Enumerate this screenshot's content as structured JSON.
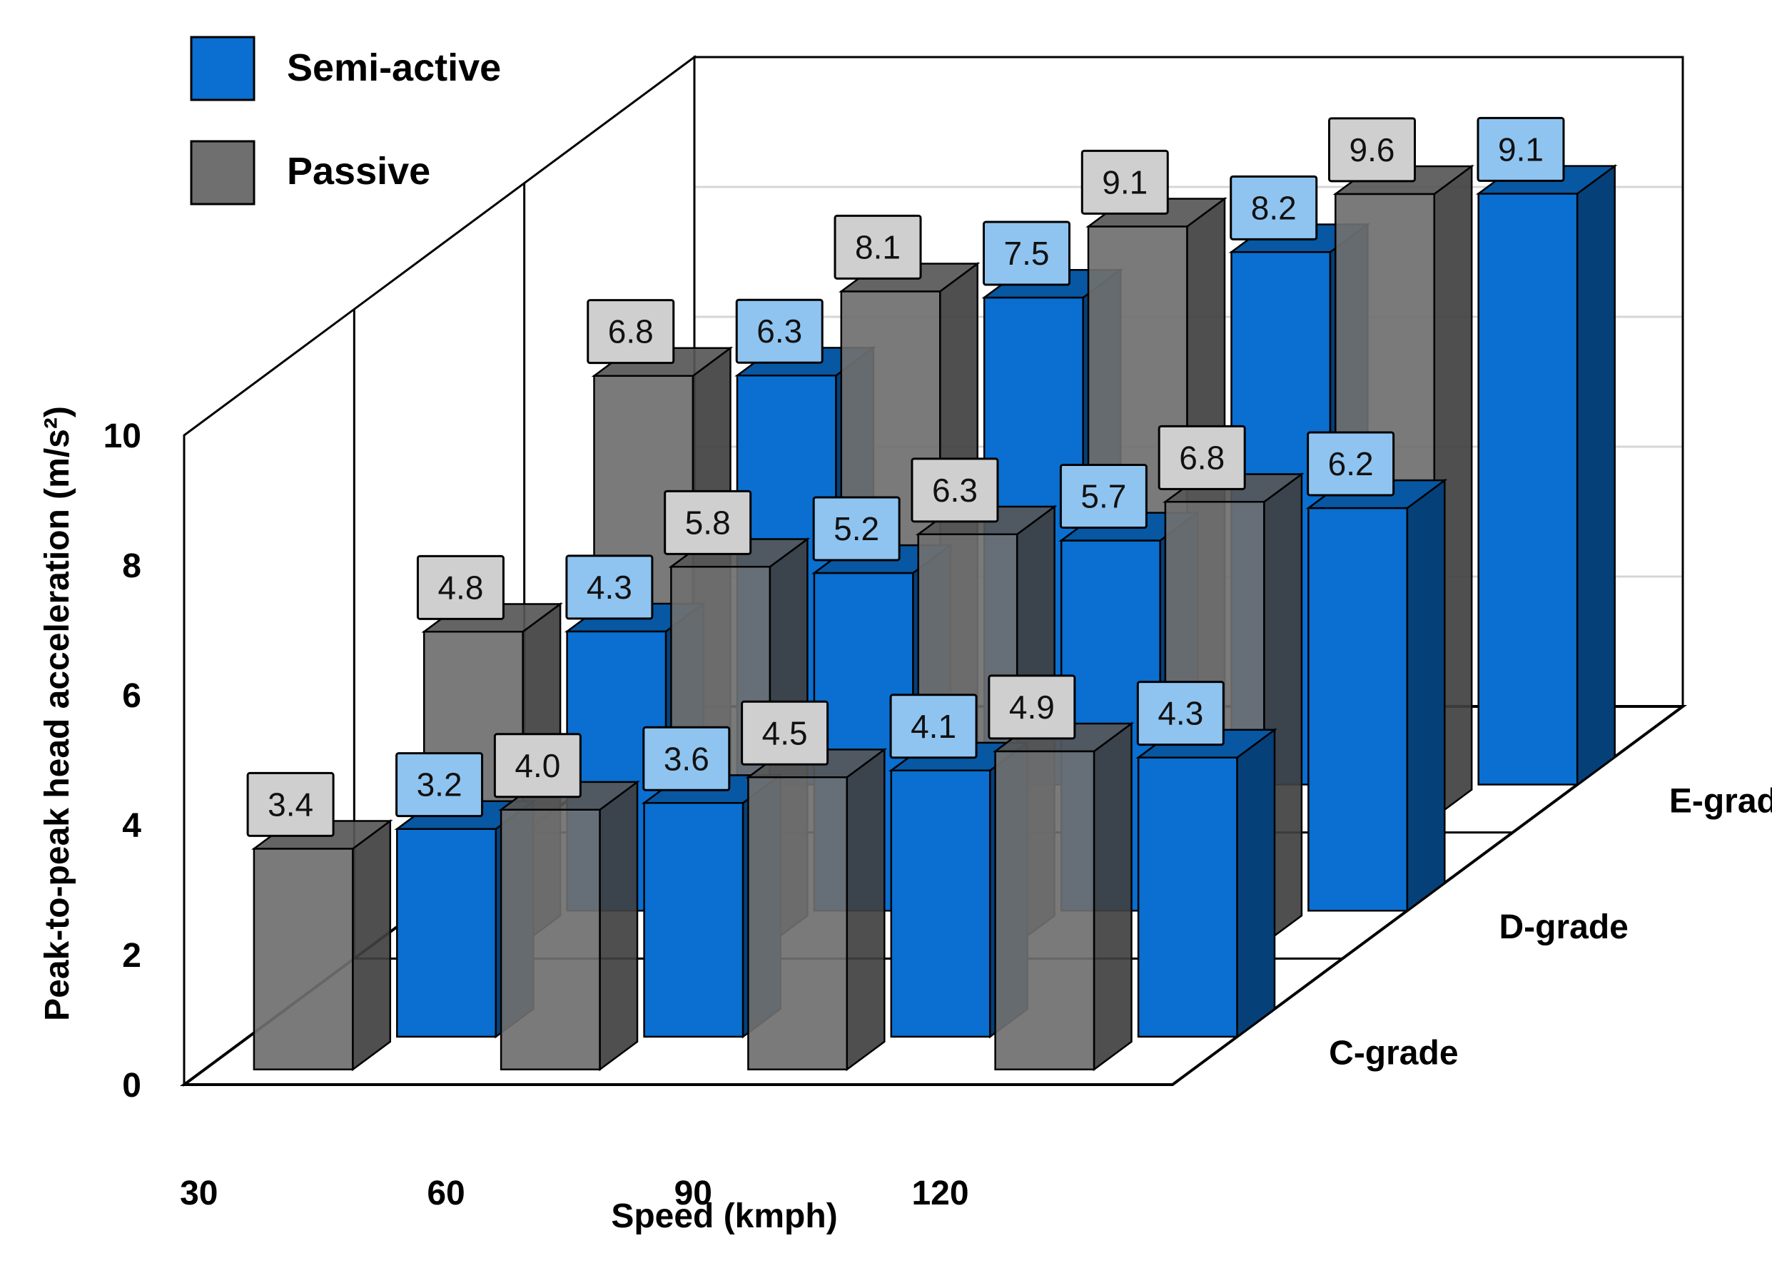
{
  "chart_data": {
    "type": "bar",
    "title": "",
    "xlabel": "Speed (kmph)",
    "ylabel": "Peak-to-peak head acceleration (m/s²)",
    "ylim": [
      0,
      10
    ],
    "yticks": [
      "0",
      "2",
      "4",
      "6",
      "8",
      "10"
    ],
    "categories": [
      "30",
      "60",
      "90",
      "120"
    ],
    "depth_categories": [
      "C-grade",
      "D-grade",
      "E-grade"
    ],
    "series": [
      {
        "name": "Semi-active",
        "color": "#0a6fd0",
        "values": {
          "C-grade": [
            3.2,
            3.6,
            4.1,
            4.3
          ],
          "D-grade": [
            4.3,
            5.2,
            5.7,
            6.2
          ],
          "E-grade": [
            6.3,
            7.5,
            8.2,
            9.1
          ]
        },
        "labels": {
          "C-grade": [
            "3.2",
            "3.6",
            "4.1",
            "4.3"
          ],
          "D-grade": [
            "4.3",
            "5.2",
            "5.7",
            "6.2"
          ],
          "E-grade": [
            "6.3",
            "7.5",
            "8.2",
            "9.1"
          ]
        }
      },
      {
        "name": "Passive",
        "color": "#6f6f6f",
        "values": {
          "C-grade": [
            3.4,
            4.0,
            4.5,
            4.9
          ],
          "D-grade": [
            4.8,
            5.8,
            6.3,
            6.8
          ],
          "E-grade": [
            6.8,
            8.1,
            9.1,
            9.6
          ]
        },
        "labels": {
          "C-grade": [
            "3.4",
            "4.0",
            "4.5",
            "4.9"
          ],
          "D-grade": [
            "4.8",
            "5.8",
            "6.3",
            "6.8"
          ],
          "E-grade": [
            "6.8",
            "8.1",
            "9.1",
            "9.6"
          ]
        }
      }
    ],
    "legend": {
      "position": "top-left"
    },
    "grid": true
  }
}
